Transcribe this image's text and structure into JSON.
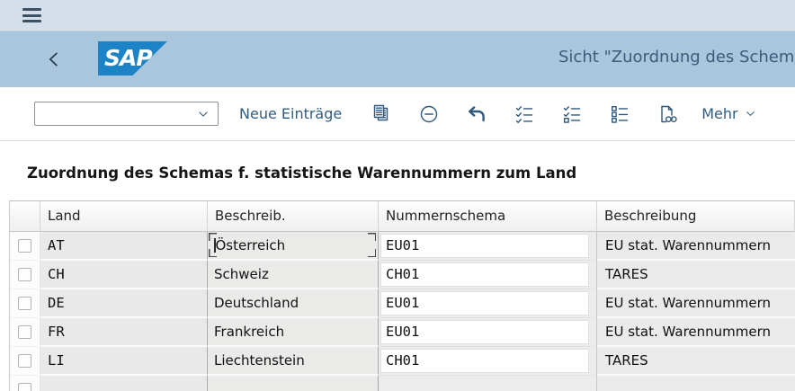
{
  "topbar": {
    "menu_icon": "hamburger-icon"
  },
  "header": {
    "back_icon": "chevron-left-icon",
    "logo_text": "SAP",
    "title": "Sicht \"Zuordnung des Schema"
  },
  "toolbar": {
    "variant_combobox": {
      "value": "",
      "placeholder": ""
    },
    "new_entries_label": "Neue Einträge",
    "icons": [
      "copy-icon",
      "remove-row-icon",
      "undo-icon",
      "select-all-icon",
      "select-block-icon",
      "deselect-all-icon",
      "display-overview-icon"
    ],
    "more_label": "Mehr"
  },
  "content": {
    "section_title": "Zuordnung des Schemas f. statistische Warennummern zum Land",
    "table": {
      "columns": [
        "Land",
        "Beschreib.",
        "Nummernschema",
        "Beschreibung"
      ],
      "rows": [
        {
          "land": "AT",
          "beschreib": "Österreich",
          "schema": "EU01",
          "beschreibung": "EU stat. Warennummern",
          "focused": true
        },
        {
          "land": "CH",
          "beschreib": "Schweiz",
          "schema": "CH01",
          "beschreibung": "TARES"
        },
        {
          "land": "DE",
          "beschreib": "Deutschland",
          "schema": "EU01",
          "beschreibung": "EU stat. Warennummern"
        },
        {
          "land": "FR",
          "beschreib": "Frankreich",
          "schema": "EU01",
          "beschreibung": "EU stat. Warennummern"
        },
        {
          "land": "LI",
          "beschreib": "Liechtenstein",
          "schema": "CH01",
          "beschreibung": "TARES"
        },
        {
          "land": "",
          "beschreib": "",
          "schema": "",
          "beschreibung": "",
          "partial": true
        }
      ]
    }
  },
  "colors": {
    "sap_logo_blue": "#1b83c6",
    "topbar_bg": "#d4dfe9",
    "header_bg": "#a9c6dd",
    "toolbar_accent": "#2f5c82",
    "title_text": "#3c5c7c"
  }
}
